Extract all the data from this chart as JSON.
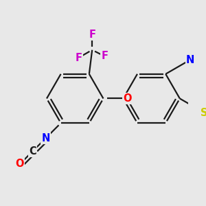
{
  "bg_color": "#e8e8e8",
  "bond_color": "#1a1a1a",
  "bond_width": 1.6,
  "atom_colors": {
    "F": "#cc00cc",
    "O": "#ff0000",
    "N": "#0000ff",
    "S": "#cccc00",
    "C": "#1a1a1a"
  },
  "font_size": 10.5
}
